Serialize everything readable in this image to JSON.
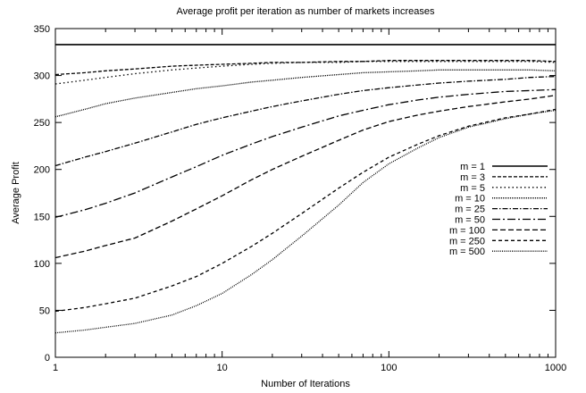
{
  "chart_data": {
    "type": "line",
    "title": "Average profit per iteration as number of markets increases",
    "xlabel": "Number of Iterations",
    "ylabel": "Average Profit",
    "xscale": "log",
    "xlim": [
      1,
      1000
    ],
    "ylim": [
      0,
      350
    ],
    "xticks": [
      1,
      10,
      100,
      1000
    ],
    "xtick_labels": [
      "1",
      "10",
      "100",
      "1000"
    ],
    "yticks": [
      0,
      50,
      100,
      150,
      200,
      250,
      300,
      350
    ],
    "ytick_labels": [
      "0",
      "50",
      "100",
      "150",
      "200",
      "250",
      "300",
      "350"
    ],
    "grid": false,
    "legend_position": "right",
    "x": [
      1,
      1.5,
      2,
      3,
      5,
      7,
      10,
      15,
      20,
      30,
      50,
      70,
      100,
      150,
      200,
      300,
      500,
      700,
      1000
    ],
    "series": [
      {
        "name": "m = 1",
        "dash": "",
        "values": [
          333,
          333,
          333,
          333,
          333,
          333,
          333,
          333,
          333,
          333,
          333,
          333,
          333,
          333,
          333,
          333,
          333,
          333,
          333
        ]
      },
      {
        "name": "m = 3",
        "dash": "4,2",
        "values": [
          301,
          303,
          305,
          307,
          310,
          311,
          312,
          313,
          314,
          314,
          315,
          315,
          316,
          316,
          316,
          316,
          316,
          316,
          315
        ]
      },
      {
        "name": "m = 5",
        "dash": "1.5,3",
        "values": [
          291,
          295,
          298,
          302,
          306,
          308,
          310,
          312,
          313,
          314,
          314,
          315,
          315,
          315,
          315,
          315,
          315,
          315,
          314
        ]
      },
      {
        "name": "m = 10",
        "dash": "1,1",
        "values": [
          256,
          264,
          270,
          276,
          282,
          286,
          289,
          293,
          295,
          298,
          301,
          303,
          304,
          305,
          306,
          306,
          306,
          306,
          305
        ]
      },
      {
        "name": "m = 25",
        "dash": "6,2,1.5,2",
        "values": [
          204,
          213,
          219,
          228,
          240,
          248,
          255,
          262,
          267,
          273,
          280,
          284,
          287,
          290,
          292,
          294,
          296,
          298,
          299
        ]
      },
      {
        "name": "m = 50",
        "dash": "9,3,2,3",
        "values": [
          149,
          157,
          164,
          175,
          192,
          203,
          215,
          227,
          235,
          245,
          257,
          263,
          269,
          274,
          277,
          280,
          283,
          284,
          285
        ]
      },
      {
        "name": "m = 100",
        "dash": "6,3",
        "values": [
          106,
          113,
          119,
          127,
          145,
          158,
          172,
          189,
          200,
          214,
          231,
          242,
          251,
          258,
          262,
          267,
          272,
          275,
          279
        ]
      },
      {
        "name": "m = 250",
        "dash": "4,3",
        "values": [
          49,
          53,
          57,
          63,
          76,
          86,
          100,
          118,
          132,
          153,
          180,
          197,
          213,
          227,
          236,
          246,
          255,
          259,
          264
        ]
      },
      {
        "name": "m = 500",
        "dash": "1,1.2",
        "values": [
          26,
          29,
          32,
          36,
          45,
          55,
          68,
          88,
          104,
          129,
          162,
          186,
          206,
          223,
          234,
          245,
          254,
          259,
          263
        ]
      }
    ]
  }
}
